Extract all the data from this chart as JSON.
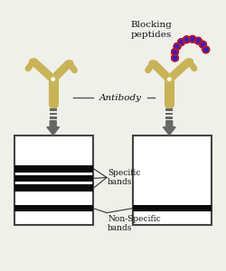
{
  "bg_color": "#f0f0eb",
  "ab_color": "#c8b455",
  "ab_lw": 5.0,
  "dot_blue": "#2222dd",
  "dot_red": "#cc1111",
  "band_color": "#0a0a0a",
  "arrow_color": "#555555",
  "text_color": "#111111",
  "blocking_text": "Blocking\npeptides",
  "antibody_text": "Antibody",
  "specific_text": "Specific\nbands",
  "nonspecific_text": "Non-Specific\nbands",
  "fig_width": 2.5,
  "fig_height": 3.0,
  "dpi": 100
}
